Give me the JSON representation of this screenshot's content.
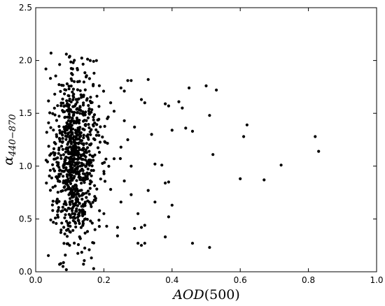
{
  "chart_data": {
    "type": "scatter",
    "xlabel": {
      "main": "AOD",
      "paren": "(500)"
    },
    "ylabel": {
      "main": "α",
      "sub": "440−870"
    },
    "xlim": [
      0.0,
      1.0
    ],
    "ylim": [
      0.0,
      2.5
    ],
    "x_ticks": [
      "0.0",
      "0.2",
      "0.4",
      "0.6",
      "0.8",
      "1.0"
    ],
    "y_ticks": [
      "0.0",
      "0.5",
      "1.0",
      "1.5",
      "2.0",
      "2.5"
    ],
    "grid": false,
    "marker_color": "#000000",
    "sparse_points": [
      {
        "x": 0.045,
        "y": 2.07
      },
      {
        "x": 0.09,
        "y": 2.06
      },
      {
        "x": 0.1,
        "y": 2.04
      },
      {
        "x": 0.11,
        "y": 1.98
      },
      {
        "x": 0.16,
        "y": 2.0
      },
      {
        "x": 0.03,
        "y": 1.92
      },
      {
        "x": 0.33,
        "y": 1.82
      },
      {
        "x": 0.27,
        "y": 1.81
      },
      {
        "x": 0.28,
        "y": 1.81
      },
      {
        "x": 0.45,
        "y": 1.74
      },
      {
        "x": 0.5,
        "y": 1.76
      },
      {
        "x": 0.53,
        "y": 1.72
      },
      {
        "x": 0.25,
        "y": 1.74
      },
      {
        "x": 0.26,
        "y": 1.71
      },
      {
        "x": 0.31,
        "y": 1.63
      },
      {
        "x": 0.32,
        "y": 1.6
      },
      {
        "x": 0.39,
        "y": 1.57
      },
      {
        "x": 0.42,
        "y": 1.61
      },
      {
        "x": 0.43,
        "y": 1.55
      },
      {
        "x": 0.38,
        "y": 1.59
      },
      {
        "x": 0.51,
        "y": 1.48
      },
      {
        "x": 0.44,
        "y": 1.36
      },
      {
        "x": 0.46,
        "y": 1.33
      },
      {
        "x": 0.4,
        "y": 1.34
      },
      {
        "x": 0.62,
        "y": 1.39
      },
      {
        "x": 0.61,
        "y": 1.28
      },
      {
        "x": 0.82,
        "y": 1.28
      },
      {
        "x": 0.83,
        "y": 1.14
      },
      {
        "x": 0.52,
        "y": 1.11
      },
      {
        "x": 0.72,
        "y": 1.01
      },
      {
        "x": 0.35,
        "y": 1.02
      },
      {
        "x": 0.37,
        "y": 1.01
      },
      {
        "x": 0.6,
        "y": 0.88
      },
      {
        "x": 0.67,
        "y": 0.87
      },
      {
        "x": 0.39,
        "y": 0.85
      },
      {
        "x": 0.38,
        "y": 0.84
      },
      {
        "x": 0.33,
        "y": 0.77
      },
      {
        "x": 0.28,
        "y": 0.73
      },
      {
        "x": 0.35,
        "y": 0.66
      },
      {
        "x": 0.4,
        "y": 0.63
      },
      {
        "x": 0.3,
        "y": 0.55
      },
      {
        "x": 0.39,
        "y": 0.52
      },
      {
        "x": 0.32,
        "y": 0.44
      },
      {
        "x": 0.24,
        "y": 0.42
      },
      {
        "x": 0.29,
        "y": 0.41
      },
      {
        "x": 0.31,
        "y": 0.42
      },
      {
        "x": 0.38,
        "y": 0.33
      },
      {
        "x": 0.24,
        "y": 0.34
      },
      {
        "x": 0.3,
        "y": 0.27
      },
      {
        "x": 0.31,
        "y": 0.25
      },
      {
        "x": 0.32,
        "y": 0.27
      },
      {
        "x": 0.46,
        "y": 0.27
      },
      {
        "x": 0.51,
        "y": 0.23
      },
      {
        "x": 0.09,
        "y": 0.02
      },
      {
        "x": 0.17,
        "y": 0.03
      },
      {
        "x": 0.08,
        "y": 0.05
      },
      {
        "x": 0.07,
        "y": 0.07
      },
      {
        "x": 0.21,
        "y": 1.45
      },
      {
        "x": 0.23,
        "y": 1.52
      },
      {
        "x": 0.22,
        "y": 1.6
      },
      {
        "x": 0.26,
        "y": 1.43
      },
      {
        "x": 0.29,
        "y": 1.37
      },
      {
        "x": 0.34,
        "y": 1.3
      },
      {
        "x": 0.27,
        "y": 1.25
      },
      {
        "x": 0.25,
        "y": 1.18
      },
      {
        "x": 0.23,
        "y": 1.07
      },
      {
        "x": 0.28,
        "y": 1.0
      },
      {
        "x": 0.2,
        "y": 0.95
      },
      {
        "x": 0.26,
        "y": 0.86
      },
      {
        "x": 0.22,
        "y": 0.78
      },
      {
        "x": 0.25,
        "y": 0.66
      },
      {
        "x": 0.2,
        "y": 0.55
      }
    ],
    "cluster": {
      "count": 820,
      "x_min": 0.03,
      "x_mode": 0.095,
      "x_spread": 0.045,
      "y_center": 1.08,
      "y_spread": 0.38,
      "y_min": 0.05,
      "y_max": 2.05
    }
  }
}
